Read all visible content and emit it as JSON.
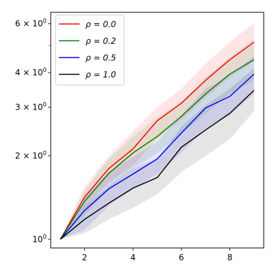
{
  "chart_data": {
    "type": "line",
    "title": "",
    "xlabel": "",
    "ylabel": "",
    "xlim": [
      0.6,
      9.4
    ],
    "ylim": [
      0.93,
      6.6
    ],
    "yscale": "log",
    "grid": false,
    "legend_position": "top-left",
    "x_ticks": [
      2,
      4,
      6,
      8
    ],
    "x_tick_labels": [
      "2",
      "4",
      "6",
      "8"
    ],
    "y_ticks": [
      1,
      2,
      3,
      4,
      6
    ],
    "y_tick_labels": [
      {
        "base": "10",
        "exp": "0"
      },
      {
        "base": "2 × 10",
        "exp": "0"
      },
      {
        "base": "3 × 10",
        "exp": "0"
      },
      {
        "base": "4 × 10",
        "exp": "0"
      },
      {
        "base": "6 × 10",
        "exp": "0"
      }
    ],
    "y_minor_ticks": [
      5
    ],
    "x": [
      1,
      2,
      3,
      4,
      5,
      6,
      7,
      8,
      9
    ],
    "series": [
      {
        "name": "ρ = 0.0",
        "color": "#ff0000",
        "values": [
          1.0,
          1.42,
          1.8,
          2.12,
          2.68,
          3.1,
          3.75,
          4.45,
          5.15
        ],
        "lower": [
          1.0,
          1.3,
          1.6,
          1.85,
          2.3,
          2.7,
          3.25,
          3.85,
          4.4
        ],
        "upper": [
          1.0,
          1.55,
          2.0,
          2.45,
          3.0,
          3.5,
          4.3,
          5.15,
          6.05
        ]
      },
      {
        "name": "ρ = 0.2",
        "color": "#008000",
        "values": [
          1.0,
          1.37,
          1.73,
          2.05,
          2.35,
          2.78,
          3.35,
          3.95,
          4.45
        ],
        "lower": [
          1.0,
          1.22,
          1.52,
          1.8,
          2.05,
          2.4,
          2.85,
          3.35,
          3.75
        ],
        "upper": [
          1.0,
          1.5,
          1.95,
          2.35,
          2.75,
          3.15,
          3.85,
          4.55,
          5.3
        ]
      },
      {
        "name": "ρ = 0.5",
        "color": "#0000ff",
        "values": [
          1.0,
          1.27,
          1.52,
          1.72,
          1.95,
          2.42,
          2.98,
          3.28,
          3.95
        ],
        "lower": [
          1.0,
          1.08,
          1.32,
          1.52,
          1.72,
          2.05,
          2.5,
          2.8,
          3.35
        ],
        "upper": [
          1.0,
          1.42,
          1.75,
          1.98,
          2.25,
          2.8,
          3.5,
          3.9,
          4.6
        ]
      },
      {
        "name": "ρ = 1.0",
        "color": "#000000",
        "values": [
          1.0,
          1.18,
          1.35,
          1.53,
          1.67,
          2.15,
          2.48,
          2.85,
          3.45
        ],
        "lower": [
          1.0,
          1.05,
          1.18,
          1.3,
          1.45,
          1.75,
          2.0,
          2.3,
          2.9
        ],
        "upper": [
          1.0,
          1.32,
          1.55,
          1.8,
          1.95,
          2.55,
          3.05,
          3.5,
          4.15
        ]
      }
    ]
  }
}
